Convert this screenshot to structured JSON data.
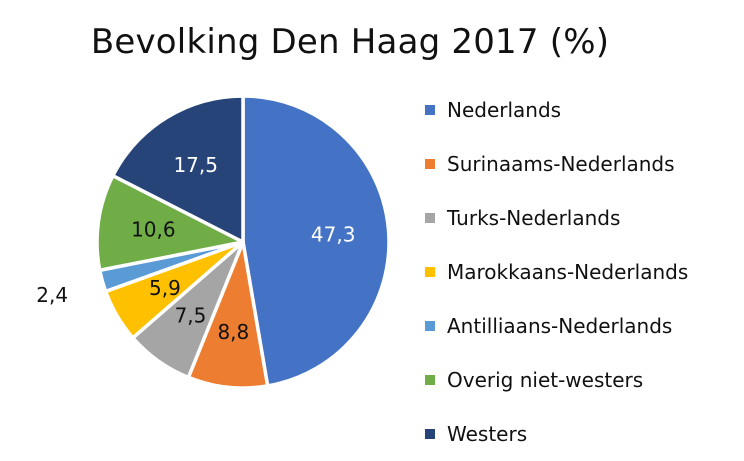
{
  "chart_data": {
    "type": "pie",
    "title": "Bevolking Den Haag 2017 (%)",
    "legend_position": "right",
    "categories": [
      "Nederlands",
      "Surinaams-Nederlands",
      "Turks-Nederlands",
      "Marokkaans-Nederlands",
      "Antilliaans-Nederlands",
      "Overig niet-westers",
      "Westers"
    ],
    "values": [
      47.3,
      8.8,
      7.5,
      5.9,
      2.4,
      10.6,
      17.5
    ],
    "labels": [
      "47,3",
      "8,8",
      "7,5",
      "5,9",
      "2,4",
      "10,6",
      "17,5"
    ],
    "colors": [
      "#4472C4",
      "#ED7D31",
      "#A5A5A5",
      "#FFC000",
      "#5B9BD5",
      "#70AD47",
      "#264478"
    ],
    "label_colors": [
      "#ffffff",
      "#111111",
      "#111111",
      "#111111",
      "#111111",
      "#111111",
      "#ffffff"
    ],
    "label_outside": [
      false,
      false,
      false,
      false,
      true,
      false,
      false
    ]
  }
}
